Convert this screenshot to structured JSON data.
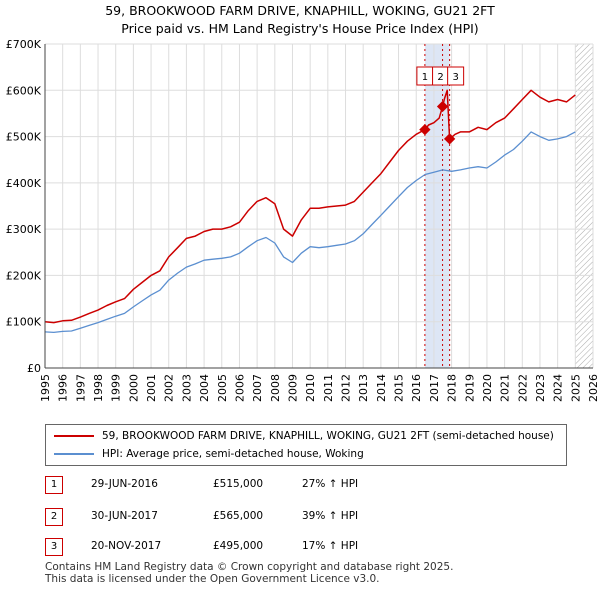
{
  "title_line1": "59, BROOKWOOD FARM DRIVE, KNAPHILL, WOKING, GU21 2FT",
  "title_line2": "Price paid vs. HM Land Registry's House Price Index (HPI)",
  "colors": {
    "property": "#cc0000",
    "hpi": "#5b8fd0",
    "vline": "#cc0000",
    "band": "#dde6f5"
  },
  "chart_data": {
    "type": "line",
    "title": "59, BROOKWOOD FARM DRIVE, KNAPHILL, WOKING, GU21 2FT — Price paid vs. HM Land Registry's House Price Index (HPI)",
    "xlim": [
      1995,
      2026
    ],
    "ylim": [
      0,
      700000
    ],
    "y_ticks": [
      0,
      100000,
      200000,
      300000,
      400000,
      500000,
      600000,
      700000
    ],
    "y_tick_labels": [
      "£0",
      "£100K",
      "£200K",
      "£300K",
      "£400K",
      "£500K",
      "£600K",
      "£700K"
    ],
    "x_tick_labels": [
      "1995",
      "1996",
      "1997",
      "1998",
      "1999",
      "2000",
      "2001",
      "2002",
      "2003",
      "2004",
      "2005",
      "2006",
      "2007",
      "2008",
      "2009",
      "2010",
      "2011",
      "2012",
      "2013",
      "2014",
      "2015",
      "2016",
      "2017",
      "2018",
      "2019",
      "2020",
      "2021",
      "2022",
      "2023",
      "2024",
      "2025",
      "2026"
    ],
    "highlight_band": [
      2016.49,
      2017.89
    ],
    "hatched_from": 2025.0,
    "series": [
      {
        "name": "59, BROOKWOOD FARM DRIVE, KNAPHILL, WOKING, GU21 2FT (semi-detached house)",
        "color_key": "property",
        "x": [
          1995.0,
          1995.5,
          1996.0,
          1996.5,
          1997.0,
          1997.5,
          1998.0,
          1998.5,
          1999.0,
          1999.5,
          2000.0,
          2000.5,
          2001.0,
          2001.5,
          2002.0,
          2002.5,
          2003.0,
          2003.5,
          2004.0,
          2004.5,
          2005.0,
          2005.5,
          2006.0,
          2006.5,
          2007.0,
          2007.5,
          2008.0,
          2008.5,
          2009.0,
          2009.5,
          2010.0,
          2010.5,
          2011.0,
          2011.5,
          2012.0,
          2012.5,
          2013.0,
          2013.5,
          2014.0,
          2014.5,
          2015.0,
          2015.5,
          2016.0,
          2016.49,
          2016.7,
          2017.0,
          2017.3,
          2017.49,
          2017.6,
          2017.75,
          2017.89,
          2018.2,
          2018.5,
          2019.0,
          2019.5,
          2020.0,
          2020.5,
          2021.0,
          2021.5,
          2022.0,
          2022.5,
          2023.0,
          2023.5,
          2024.0,
          2024.5,
          2025.0
        ],
        "y": [
          100000,
          98000,
          102000,
          103000,
          110000,
          118000,
          125000,
          135000,
          143000,
          150000,
          170000,
          185000,
          200000,
          210000,
          240000,
          260000,
          280000,
          285000,
          295000,
          300000,
          300000,
          305000,
          315000,
          340000,
          360000,
          368000,
          355000,
          300000,
          285000,
          320000,
          345000,
          345000,
          348000,
          350000,
          352000,
          360000,
          380000,
          400000,
          420000,
          445000,
          470000,
          490000,
          505000,
          515000,
          525000,
          530000,
          540000,
          565000,
          582000,
          600000,
          495000,
          505000,
          510000,
          510000,
          520000,
          515000,
          530000,
          540000,
          560000,
          580000,
          600000,
          585000,
          575000,
          580000,
          575000,
          590000
        ]
      },
      {
        "name": "HPI: Average price, semi-detached house, Woking",
        "color_key": "hpi",
        "x": [
          1995.0,
          1995.5,
          1996.0,
          1996.5,
          1997.0,
          1997.5,
          1998.0,
          1998.5,
          1999.0,
          1999.5,
          2000.0,
          2000.5,
          2001.0,
          2001.5,
          2002.0,
          2002.5,
          2003.0,
          2003.5,
          2004.0,
          2004.5,
          2005.0,
          2005.5,
          2006.0,
          2006.5,
          2007.0,
          2007.5,
          2008.0,
          2008.5,
          2009.0,
          2009.5,
          2010.0,
          2010.5,
          2011.0,
          2011.5,
          2012.0,
          2012.5,
          2013.0,
          2013.5,
          2014.0,
          2014.5,
          2015.0,
          2015.5,
          2016.0,
          2016.5,
          2017.0,
          2017.5,
          2018.0,
          2018.5,
          2019.0,
          2019.5,
          2020.0,
          2020.5,
          2021.0,
          2021.5,
          2022.0,
          2022.5,
          2023.0,
          2023.5,
          2024.0,
          2024.5,
          2025.0
        ],
        "y": [
          78000,
          77000,
          79000,
          80000,
          86000,
          92000,
          98000,
          105000,
          112000,
          118000,
          132000,
          145000,
          158000,
          168000,
          190000,
          205000,
          218000,
          225000,
          233000,
          235000,
          237000,
          240000,
          248000,
          262000,
          275000,
          282000,
          270000,
          240000,
          228000,
          248000,
          262000,
          260000,
          262000,
          265000,
          268000,
          275000,
          290000,
          310000,
          330000,
          350000,
          370000,
          390000,
          405000,
          418000,
          423000,
          428000,
          425000,
          428000,
          432000,
          435000,
          432000,
          445000,
          460000,
          472000,
          490000,
          510000,
          500000,
          492000,
          495000,
          500000,
          510000
        ]
      }
    ],
    "sales": [
      {
        "label": "1",
        "date": "29-JUN-2016",
        "x": 2016.49,
        "price": 515000,
        "hpi_text": "27% ↑ HPI"
      },
      {
        "label": "2",
        "date": "30-JUN-2017",
        "x": 2017.49,
        "price": 565000,
        "hpi_text": "39% ↑ HPI"
      },
      {
        "label": "3",
        "date": "20-NOV-2017",
        "x": 2017.89,
        "price": 495000,
        "hpi_text": "17% ↑ HPI"
      }
    ],
    "sales_display": [
      {
        "label": "1",
        "date": "29-JUN-2016",
        "price_text": "£515,000",
        "hpi_text": "27% ↑ HPI"
      },
      {
        "label": "2",
        "date": "30-JUN-2017",
        "price_text": "£565,000",
        "hpi_text": "39% ↑ HPI"
      },
      {
        "label": "3",
        "date": "20-NOV-2017",
        "price_text": "£495,000",
        "hpi_text": "17% ↑ HPI"
      }
    ]
  },
  "legend": {
    "property_label": "59, BROOKWOOD FARM DRIVE, KNAPHILL, WOKING, GU21 2FT (semi-detached house)",
    "hpi_label": "HPI: Average price, semi-detached house, Woking"
  },
  "footer": {
    "line1": "Contains HM Land Registry data © Crown copyright and database right 2025.",
    "line2": "This data is licensed under the Open Government Licence v3.0."
  }
}
